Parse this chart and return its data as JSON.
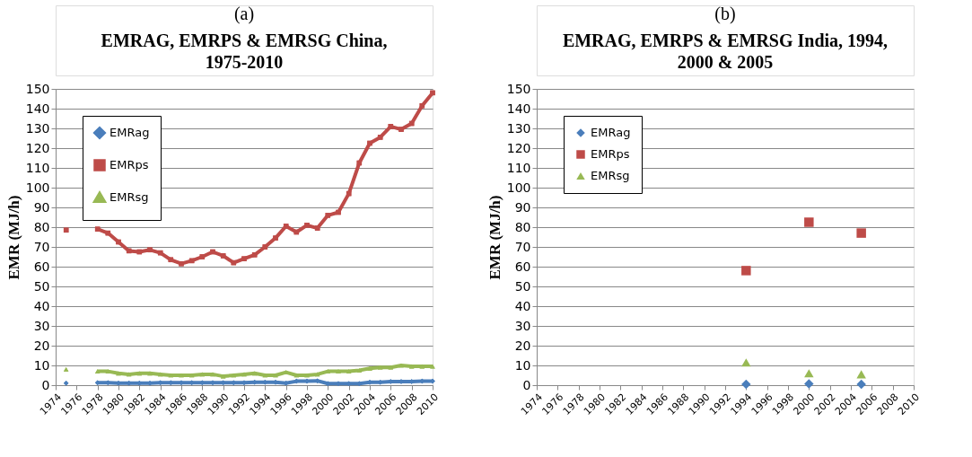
{
  "chart_data": [
    {
      "type": "line",
      "annotations": [
        "(a)"
      ],
      "title": "EMRAG, EMRPS & EMRSG China, 1975-2010",
      "ylabel": "EMR (MJ/h)",
      "x": [
        1975,
        1976,
        1977,
        1978,
        1979,
        1980,
        1981,
        1982,
        1983,
        1984,
        1985,
        1986,
        1987,
        1988,
        1989,
        1990,
        1991,
        1992,
        1993,
        1994,
        1995,
        1996,
        1997,
        1998,
        1999,
        2000,
        2001,
        2002,
        2003,
        2004,
        2005,
        2006,
        2007,
        2008,
        2009,
        2010
      ],
      "series": [
        {
          "name": "EMRag",
          "color": "#4a7ebb",
          "marker": "diamond",
          "values": [
            1,
            null,
            null,
            1.2,
            1.2,
            1,
            1,
            1,
            1,
            1.2,
            1.2,
            1.2,
            1.2,
            1.2,
            1.2,
            1.2,
            1.2,
            1.2,
            1.5,
            1.5,
            1.5,
            1,
            2,
            2,
            2.2,
            0.8,
            0.8,
            0.8,
            0.8,
            1.5,
            1.5,
            1.8,
            1.8,
            1.8,
            2,
            2
          ]
        },
        {
          "name": "EMRps",
          "color": "#be4b48",
          "marker": "square",
          "values": [
            78.5,
            null,
            null,
            79,
            77,
            72.5,
            68,
            67.5,
            68.5,
            67,
            63.5,
            61.5,
            63,
            65,
            67.5,
            65.5,
            62,
            64,
            66,
            70,
            74.5,
            80.5,
            77.5,
            81,
            79.5,
            86,
            87.5,
            97,
            112.5,
            122.5,
            125.5,
            131,
            129.5,
            132.5,
            141.5,
            148
          ]
        },
        {
          "name": "EMRsg",
          "color": "#98b954",
          "marker": "triangle",
          "values": [
            8,
            null,
            null,
            7,
            7,
            6,
            5.5,
            6,
            6,
            5.5,
            5,
            5,
            5,
            5.5,
            5.5,
            4.5,
            5,
            5.5,
            6,
            5,
            5,
            6.5,
            5,
            5,
            5.5,
            7,
            7,
            7,
            7.5,
            8.5,
            9,
            9,
            10,
            9.5,
            9.5,
            9.5
          ]
        }
      ],
      "xlim": [
        1974,
        2010
      ],
      "xticks": [
        1974,
        1976,
        1978,
        1980,
        1982,
        1984,
        1986,
        1988,
        1990,
        1992,
        1994,
        1996,
        1998,
        2000,
        2002,
        2004,
        2006,
        2008,
        2010
      ],
      "ylim": [
        0,
        150
      ],
      "yticks": [
        0,
        10,
        20,
        30,
        40,
        50,
        60,
        70,
        80,
        90,
        100,
        110,
        120,
        130,
        140,
        150
      ],
      "grid": "y",
      "legend": "top left"
    },
    {
      "type": "scatter",
      "annotations": [
        "(b)"
      ],
      "title": "EMRAG, EMRPS & EMRSG India, 1994, 2000 & 2005",
      "ylabel": "EMR (MJ/h)",
      "x": [
        1994,
        2000,
        2005
      ],
      "series": [
        {
          "name": "EMRag",
          "color": "#4a7ebb",
          "marker": "diamond",
          "values": [
            0.5,
            0.7,
            0.5
          ]
        },
        {
          "name": "EMRps",
          "color": "#be4b48",
          "marker": "square",
          "values": [
            58,
            82.5,
            77
          ]
        },
        {
          "name": "EMRsg",
          "color": "#98b954",
          "marker": "triangle",
          "values": [
            11.5,
            6,
            5.5
          ]
        }
      ],
      "xlim": [
        1974,
        2010
      ],
      "xticks": [
        1974,
        1976,
        1978,
        1980,
        1982,
        1984,
        1986,
        1988,
        1990,
        1992,
        1994,
        1996,
        1998,
        2000,
        2002,
        2004,
        2006,
        2008,
        2010
      ],
      "ylim": [
        0,
        150
      ],
      "yticks": [
        0,
        10,
        20,
        30,
        40,
        50,
        60,
        70,
        80,
        90,
        100,
        110,
        120,
        130,
        140,
        150
      ],
      "grid": "y",
      "legend": "top left"
    }
  ]
}
